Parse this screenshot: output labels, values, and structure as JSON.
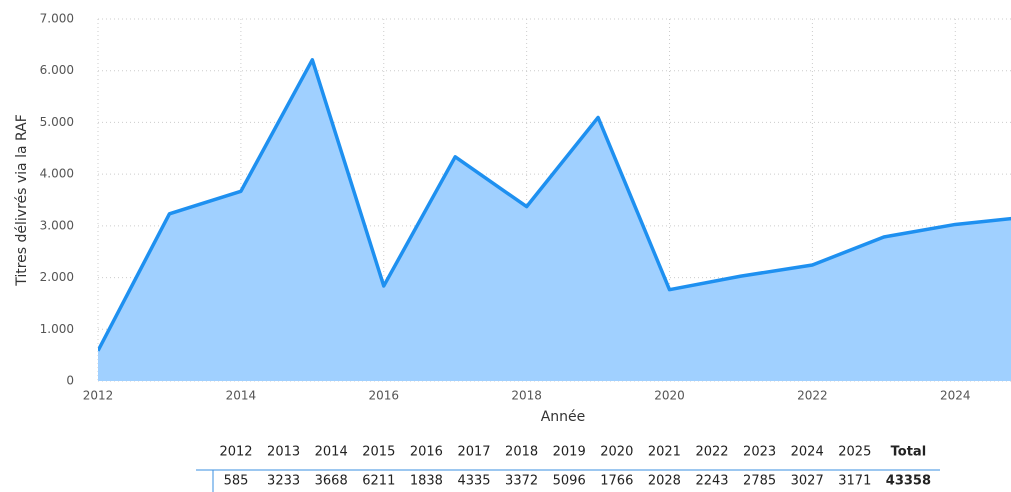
{
  "chart_data": {
    "type": "area",
    "x_label": "Année",
    "y_label": "Titres délivrés via la RAF",
    "x": [
      2012,
      2013,
      2014,
      2015,
      2016,
      2017,
      2018,
      2019,
      2020,
      2021,
      2022,
      2023,
      2024,
      2025
    ],
    "values": [
      585,
      3233,
      3668,
      6211,
      1838,
      4335,
      3372,
      5096,
      1766,
      2028,
      2243,
      2785,
      3027,
      3171
    ],
    "color": "#1e90f0",
    "fill": "#a0d0ff",
    "xlim": [
      2012,
      2024.78
    ],
    "xticks": [
      2012,
      2014,
      2016,
      2018,
      2020,
      2022,
      2024
    ],
    "ylim": [
      0,
      7000
    ],
    "yticks": [
      0,
      {
        "value": 1000,
        "label": "1.000"
      },
      {
        "value": 2000,
        "label": "2.000"
      },
      {
        "value": 3000,
        "label": "3.000"
      },
      {
        "value": 4000,
        "label": "4.000"
      },
      {
        "value": 5000,
        "label": "5.000"
      },
      {
        "value": 6000,
        "label": "6.000"
      },
      {
        "value": 7000,
        "label": "7.000"
      }
    ],
    "grid": true
  },
  "table": {
    "total_header": "Total",
    "total": 43358
  }
}
